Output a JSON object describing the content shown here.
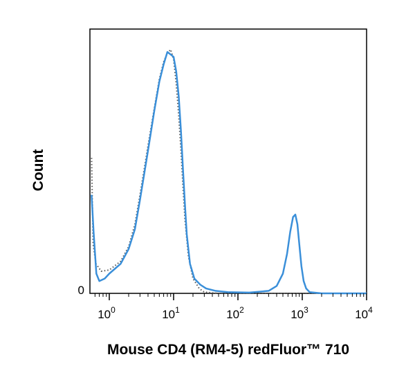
{
  "chart_data": {
    "type": "line",
    "title": "",
    "xlabel": "Mouse CD4 (RM4-5) redFluor™ 710",
    "ylabel": "Count",
    "x_scale": "log",
    "xlim": [
      0.5,
      10000
    ],
    "ylim": [
      0,
      100
    ],
    "x_ticks": [
      {
        "base": "10",
        "exp": "0",
        "value": 1
      },
      {
        "base": "10",
        "exp": "1",
        "value": 10
      },
      {
        "base": "10",
        "exp": "2",
        "value": 100
      },
      {
        "base": "10",
        "exp": "3",
        "value": 1000
      },
      {
        "base": "10",
        "exp": "4",
        "value": 10000
      }
    ],
    "y_ticks": [
      {
        "label": "0",
        "value": 0
      }
    ],
    "grid": false,
    "legend": "none",
    "series": [
      {
        "style": "dotted",
        "color": "#555555",
        "points": [
          [
            0.53,
            55
          ],
          [
            0.56,
            20
          ],
          [
            0.62,
            12
          ],
          [
            0.75,
            9
          ],
          [
            1.0,
            9.5
          ],
          [
            1.5,
            13
          ],
          [
            2.0,
            19
          ],
          [
            2.5,
            28
          ],
          [
            3.0,
            40
          ],
          [
            4.0,
            60
          ],
          [
            5.0,
            75
          ],
          [
            6.0,
            87
          ],
          [
            7.0,
            94
          ],
          [
            8.0,
            97.5
          ],
          [
            9.0,
            99
          ],
          [
            10.0,
            95
          ],
          [
            11.0,
            85
          ],
          [
            12.0,
            72
          ],
          [
            13.0,
            58
          ],
          [
            14.0,
            43
          ],
          [
            15.0,
            30
          ],
          [
            17.0,
            15
          ],
          [
            20.0,
            6
          ],
          [
            25.0,
            2
          ],
          [
            30.0,
            0.5
          ],
          [
            50.0,
            0
          ],
          [
            10000,
            0
          ]
        ]
      },
      {
        "style": "solid",
        "color": "#3a8fd9",
        "points": [
          [
            0.53,
            40
          ],
          [
            0.57,
            25
          ],
          [
            0.63,
            8
          ],
          [
            0.7,
            5
          ],
          [
            0.85,
            6
          ],
          [
            1.0,
            8
          ],
          [
            1.5,
            12
          ],
          [
            2.0,
            18
          ],
          [
            2.5,
            26
          ],
          [
            3.0,
            38
          ],
          [
            4.0,
            58
          ],
          [
            5.0,
            74
          ],
          [
            6.0,
            86
          ],
          [
            7.0,
            93
          ],
          [
            8.0,
            98
          ],
          [
            9.0,
            97
          ],
          [
            10.0,
            96
          ],
          [
            11.0,
            90
          ],
          [
            12.0,
            80
          ],
          [
            13.0,
            66
          ],
          [
            14.0,
            50
          ],
          [
            15.0,
            36
          ],
          [
            16.0,
            24
          ],
          [
            18.0,
            12
          ],
          [
            21.0,
            6
          ],
          [
            26.0,
            3.5
          ],
          [
            32.0,
            2
          ],
          [
            45.0,
            1
          ],
          [
            70.0,
            0.5
          ],
          [
            150.0,
            0.3
          ],
          [
            300.0,
            1
          ],
          [
            400.0,
            3
          ],
          [
            500.0,
            8
          ],
          [
            580.0,
            16
          ],
          [
            650.0,
            25
          ],
          [
            720.0,
            31
          ],
          [
            780.0,
            32
          ],
          [
            840.0,
            28
          ],
          [
            900.0,
            20
          ],
          [
            970.0,
            11
          ],
          [
            1050.0,
            5
          ],
          [
            1150.0,
            2
          ],
          [
            1300.0,
            0.5
          ],
          [
            2000.0,
            0
          ],
          [
            10000,
            0
          ]
        ]
      }
    ]
  }
}
